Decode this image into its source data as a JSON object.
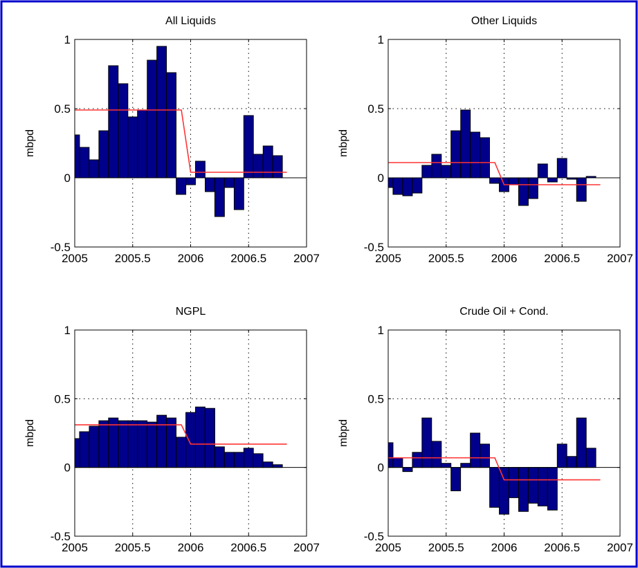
{
  "frame_color": "#0000cc",
  "bar_color": "#00008b",
  "fit_color": "#ff3333",
  "chart_data": [
    {
      "type": "bar",
      "title": "All Liquids",
      "xlabel": "",
      "ylabel": "mbpd",
      "xlim": [
        2005,
        2007
      ],
      "ylim": [
        -0.5,
        1
      ],
      "grid": true,
      "xticks": [
        "2005",
        "2005.5",
        "2006",
        "2006.5",
        "2007"
      ],
      "yticks": [
        "1",
        "0.5",
        "0",
        "-0.5"
      ],
      "x": [
        2005.0,
        2005.083,
        2005.167,
        2005.25,
        2005.333,
        2005.417,
        2005.5,
        2005.583,
        2005.667,
        2005.75,
        2005.833,
        2005.917,
        2006.0,
        2006.083,
        2006.167,
        2006.25,
        2006.333,
        2006.417,
        2006.5,
        2006.583,
        2006.667,
        2006.75
      ],
      "values": [
        0.31,
        0.22,
        0.13,
        0.34,
        0.81,
        0.68,
        0.44,
        0.49,
        0.85,
        0.95,
        0.76,
        -0.12,
        -0.05,
        0.12,
        -0.1,
        -0.28,
        -0.07,
        -0.23,
        0.45,
        0.17,
        0.23,
        0.16
      ],
      "fit_line": {
        "x": [
          2005.0,
          2005.92,
          2006.0,
          2006.83
        ],
        "y": [
          0.49,
          0.49,
          0.04,
          0.04
        ]
      }
    },
    {
      "type": "bar",
      "title": "Other Liquids",
      "xlabel": "",
      "ylabel": "mbpd",
      "xlim": [
        2005,
        2007
      ],
      "ylim": [
        -0.5,
        1
      ],
      "grid": true,
      "xticks": [
        "2005",
        "2005.5",
        "2006",
        "2006.5",
        "2007"
      ],
      "yticks": [
        "1",
        "0.5",
        "0",
        "-0.5"
      ],
      "x": [
        2005.0,
        2005.083,
        2005.167,
        2005.25,
        2005.333,
        2005.417,
        2005.5,
        2005.583,
        2005.667,
        2005.75,
        2005.833,
        2005.917,
        2006.0,
        2006.083,
        2006.167,
        2006.25,
        2006.333,
        2006.417,
        2006.5,
        2006.583,
        2006.667,
        2006.75
      ],
      "values": [
        -0.07,
        -0.12,
        -0.13,
        -0.11,
        0.09,
        0.17,
        0.09,
        0.34,
        0.49,
        0.33,
        0.29,
        -0.04,
        -0.1,
        -0.05,
        -0.2,
        -0.15,
        0.1,
        -0.03,
        0.14,
        -0.01,
        -0.17,
        0.01
      ],
      "fit_line": {
        "x": [
          2005.0,
          2005.92,
          2006.0,
          2006.83
        ],
        "y": [
          0.11,
          0.11,
          -0.05,
          -0.05
        ]
      }
    },
    {
      "type": "bar",
      "title": "NGPL",
      "xlabel": "",
      "ylabel": "mbpd",
      "xlim": [
        2005,
        2007
      ],
      "ylim": [
        -0.5,
        1
      ],
      "grid": true,
      "xticks": [
        "2005",
        "2005.5",
        "2006",
        "2006.5",
        "2007"
      ],
      "yticks": [
        "1",
        "0.5",
        "0",
        "-0.5"
      ],
      "x": [
        2005.0,
        2005.083,
        2005.167,
        2005.25,
        2005.333,
        2005.417,
        2005.5,
        2005.583,
        2005.667,
        2005.75,
        2005.833,
        2005.917,
        2006.0,
        2006.083,
        2006.167,
        2006.25,
        2006.333,
        2006.417,
        2006.5,
        2006.583,
        2006.667,
        2006.75
      ],
      "values": [
        0.21,
        0.26,
        0.3,
        0.34,
        0.36,
        0.34,
        0.34,
        0.34,
        0.33,
        0.38,
        0.36,
        0.22,
        0.4,
        0.44,
        0.43,
        0.15,
        0.11,
        0.11,
        0.14,
        0.1,
        0.04,
        0.02
      ],
      "fit_line": {
        "x": [
          2005.0,
          2005.92,
          2006.0,
          2006.83
        ],
        "y": [
          0.31,
          0.31,
          0.17,
          0.17
        ]
      }
    },
    {
      "type": "bar",
      "title": "Crude Oil + Cond.",
      "xlabel": "",
      "ylabel": "mbpd",
      "xlim": [
        2005,
        2007
      ],
      "ylim": [
        -0.5,
        1
      ],
      "grid": true,
      "xticks": [
        "2005",
        "2005.5",
        "2006",
        "2006.5",
        "2007"
      ],
      "yticks": [
        "1",
        "0.5",
        "0",
        "-0.5"
      ],
      "x": [
        2005.0,
        2005.083,
        2005.167,
        2005.25,
        2005.333,
        2005.417,
        2005.5,
        2005.583,
        2005.667,
        2005.75,
        2005.833,
        2005.917,
        2006.0,
        2006.083,
        2006.167,
        2006.25,
        2006.333,
        2006.417,
        2006.5,
        2006.583,
        2006.667,
        2006.75
      ],
      "values": [
        0.18,
        0.07,
        -0.03,
        0.11,
        0.36,
        0.19,
        0.03,
        -0.17,
        0.03,
        0.25,
        0.17,
        -0.29,
        -0.34,
        -0.22,
        -0.32,
        -0.26,
        -0.28,
        -0.31,
        0.17,
        0.08,
        0.36,
        0.14
      ],
      "fit_line": {
        "x": [
          2005.0,
          2005.92,
          2006.0,
          2006.83
        ],
        "y": [
          0.07,
          0.07,
          -0.09,
          -0.09
        ]
      }
    }
  ]
}
